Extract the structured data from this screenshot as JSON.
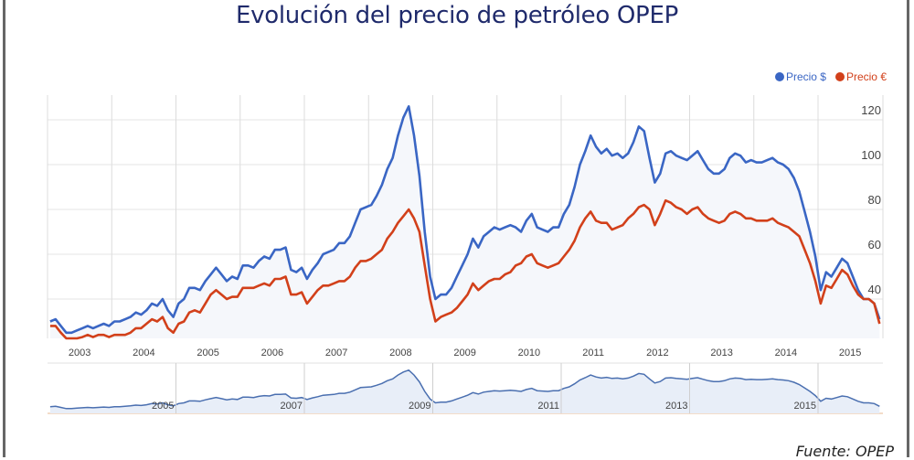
{
  "title": "Evolución del precio de petróleo OPEP",
  "source": "Fuente: OPEP",
  "chart_data": {
    "type": "line",
    "title": "Evolución del precio de petróleo OPEP",
    "xlabel": "",
    "ylabel": "",
    "x_start": "2003-01",
    "x_step": "month",
    "xlim": [
      2003.0,
      2016.0
    ],
    "ylim": [
      22,
      130
    ],
    "y_ticks": [
      40,
      60,
      80,
      100,
      120
    ],
    "x_ticks": [
      "2003",
      "2004",
      "2005",
      "2006",
      "2007",
      "2008",
      "2009",
      "2010",
      "2011",
      "2012",
      "2013",
      "2014",
      "2015"
    ],
    "navigator_ticks": [
      "2005",
      "2007",
      "2009",
      "2011",
      "2013",
      "2015"
    ],
    "legend_position": "top-right",
    "grid": true,
    "series": [
      {
        "name": "Precio $",
        "color": "#3a66c4",
        "values": [
          30,
          31,
          28,
          25,
          25,
          26,
          27,
          28,
          27,
          28,
          29,
          28,
          30,
          30,
          31,
          32,
          34,
          33,
          35,
          38,
          37,
          40,
          35,
          32,
          38,
          40,
          45,
          45,
          44,
          48,
          51,
          54,
          51,
          48,
          50,
          49,
          55,
          55,
          54,
          57,
          59,
          58,
          62,
          62,
          63,
          53,
          52,
          54,
          49,
          53,
          56,
          60,
          61,
          62,
          65,
          65,
          68,
          74,
          80,
          81,
          82,
          86,
          91,
          98,
          103,
          113,
          121,
          126,
          113,
          95,
          70,
          50,
          40,
          42,
          42,
          45,
          50,
          55,
          60,
          67,
          63,
          68,
          70,
          72,
          71,
          72,
          73,
          72,
          70,
          75,
          78,
          72,
          71,
          70,
          72,
          72,
          78,
          82,
          90,
          100,
          106,
          113,
          108,
          105,
          107,
          104,
          105,
          103,
          105,
          110,
          117,
          115,
          103,
          92,
          96,
          105,
          106,
          104,
          103,
          102,
          104,
          106,
          102,
          98,
          96,
          96,
          98,
          103,
          105,
          104,
          101,
          102,
          101,
          101,
          102,
          103,
          101,
          100,
          98,
          94,
          88,
          79,
          70,
          59,
          44,
          52,
          50,
          54,
          58,
          56,
          50,
          44,
          40,
          40,
          38,
          31
        ]
      },
      {
        "name": "Precio €",
        "color": "#d2401a",
        "values": [
          28,
          28,
          25,
          22,
          22,
          22,
          23,
          24,
          23,
          24,
          24,
          23,
          24,
          24,
          24,
          25,
          27,
          27,
          29,
          31,
          30,
          32,
          27,
          25,
          29,
          30,
          34,
          35,
          34,
          38,
          42,
          44,
          42,
          40,
          41,
          41,
          45,
          45,
          45,
          46,
          47,
          46,
          49,
          49,
          50,
          42,
          42,
          43,
          38,
          41,
          44,
          46,
          46,
          47,
          48,
          48,
          50,
          54,
          57,
          57,
          58,
          60,
          62,
          67,
          70,
          74,
          77,
          80,
          76,
          70,
          55,
          40,
          30,
          32,
          33,
          34,
          36,
          39,
          42,
          47,
          44,
          46,
          48,
          49,
          49,
          51,
          52,
          55,
          56,
          59,
          60,
          56,
          55,
          54,
          55,
          56,
          59,
          62,
          66,
          72,
          76,
          79,
          75,
          74,
          74,
          71,
          72,
          73,
          76,
          78,
          81,
          82,
          80,
          73,
          78,
          84,
          83,
          81,
          80,
          78,
          80,
          81,
          78,
          76,
          75,
          74,
          75,
          78,
          79,
          78,
          76,
          76,
          75,
          75,
          75,
          76,
          74,
          73,
          72,
          70,
          68,
          62,
          56,
          48,
          38,
          46,
          45,
          49,
          53,
          51,
          46,
          42,
          40,
          40,
          38,
          29
        ]
      }
    ]
  }
}
